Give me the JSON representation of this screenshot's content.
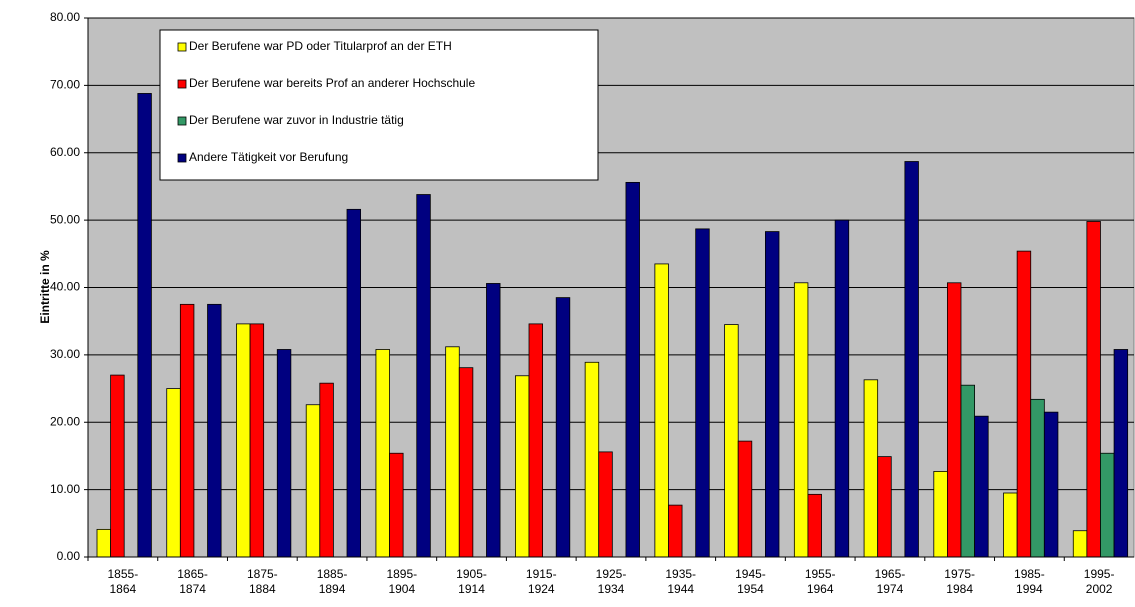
{
  "chart_data": {
    "type": "bar",
    "ylabel": "Eintritte in %",
    "categories": [
      "1855-\n1864",
      "1865-\n1874",
      "1875-\n1884",
      "1885-\n1894",
      "1895-\n1904",
      "1905-\n1914",
      "1915-\n1924",
      "1925-\n1934",
      "1935-\n1944",
      "1945-\n1954",
      "1955-\n1964",
      "1965-\n1974",
      "1975-\n1984",
      "1985-\n1994",
      "1995-\n2002"
    ],
    "series": [
      {
        "name": "Der Berufene war PD oder Titularprof an der ETH",
        "color": "#ffff00",
        "values": [
          4.1,
          25,
          34.6,
          22.6,
          30.8,
          31.2,
          26.9,
          28.9,
          43.5,
          34.5,
          40.7,
          26.3,
          12.7,
          9.5,
          3.9
        ]
      },
      {
        "name": "Der Berufene war bereits Prof an anderer Hochschule",
        "color": "#ff0000",
        "values": [
          27,
          37.5,
          34.6,
          25.8,
          15.4,
          28.1,
          34.6,
          15.6,
          7.7,
          17.2,
          9.3,
          14.9,
          40.7,
          45.4,
          49.8
        ]
      },
      {
        "name": "Der Berufene war zuvor in Industrie tätig",
        "color": "#339966",
        "values": [
          0,
          0,
          0,
          0,
          0,
          0,
          0,
          0,
          0,
          0,
          0,
          0,
          25.5,
          23.4,
          15.4
        ]
      },
      {
        "name": "Andere Tätigkeit vor Berufung",
        "color": "#000080",
        "values": [
          68.8,
          37.5,
          30.8,
          51.6,
          53.8,
          40.6,
          38.5,
          55.6,
          48.7,
          48.3,
          50,
          58.7,
          20.9,
          21.5,
          30.8
        ]
      }
    ],
    "ylim": [
      0,
      80
    ],
    "yticks": [
      {
        "value": 0,
        "label": "0.00"
      },
      {
        "value": 10,
        "label": "10.00"
      },
      {
        "value": 20,
        "label": "20.00"
      },
      {
        "value": 30,
        "label": "30.00"
      },
      {
        "value": 40,
        "label": "40.00"
      },
      {
        "value": 50,
        "label": "50.00"
      },
      {
        "value": 60,
        "label": "60.00"
      },
      {
        "value": 70,
        "label": "70.00"
      },
      {
        "value": 80,
        "label": "80.00"
      }
    ],
    "grid": true,
    "legend_position": "upper left"
  }
}
